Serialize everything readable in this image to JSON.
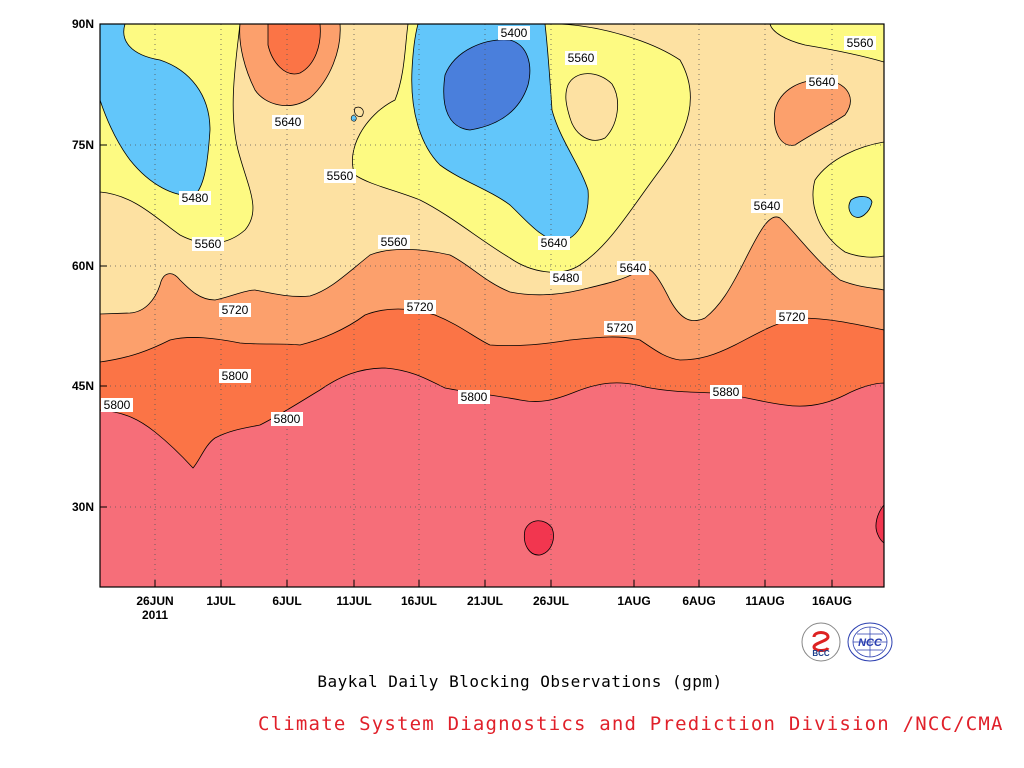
{
  "chart_data": {
    "type": "contour",
    "title": "Baykal Daily Blocking Observations (gpm)",
    "x_ticks": [
      "26JUN",
      "1JUL",
      "6JUL",
      "11JUL",
      "16JUL",
      "21JUL",
      "26JUL",
      "1AUG",
      "6AUG",
      "11AUG",
      "16AUG"
    ],
    "x_tick_year": "2011",
    "y_ticks": [
      "90N",
      "75N",
      "60N",
      "45N",
      "30N"
    ],
    "ylim": [
      20,
      90
    ],
    "contour_levels": [
      5400,
      5480,
      5560,
      5640,
      5720,
      5800,
      5880
    ],
    "contour_labels": [
      {
        "level": "5400"
      },
      {
        "level": "5560"
      },
      {
        "level": "5560"
      },
      {
        "level": "5640"
      },
      {
        "level": "5640"
      },
      {
        "level": "5560"
      },
      {
        "level": "5480"
      },
      {
        "level": "5560"
      },
      {
        "level": "5640"
      },
      {
        "level": "5480"
      },
      {
        "level": "5640"
      },
      {
        "level": "5560"
      },
      {
        "level": "5640"
      },
      {
        "level": "5720"
      },
      {
        "level": "5720"
      },
      {
        "level": "5720"
      },
      {
        "level": "5720"
      },
      {
        "level": "5800"
      },
      {
        "level": "5800"
      },
      {
        "level": "5800"
      },
      {
        "level": "5800"
      },
      {
        "level": "5880"
      }
    ],
    "colors": {
      "below_5400": "#4a7fdc",
      "5400_5480": "#62c6fa",
      "5480_5560": "#fdfa82",
      "5560_5640": "#fde1a2",
      "5640_5720": "#fca06c",
      "5720_5800": "#fb7446",
      "5800_5880": "#f66e79",
      "above_5880": "#f2364f"
    },
    "grid": true
  },
  "caption": "Baykal Daily Blocking Observations (gpm)",
  "credit": "Climate System Diagnostics and Prediction Division /NCC/CMA",
  "logos": [
    {
      "name": "bcc-logo",
      "text": "BCC"
    },
    {
      "name": "ncc-logo",
      "text": "NCC"
    }
  ]
}
